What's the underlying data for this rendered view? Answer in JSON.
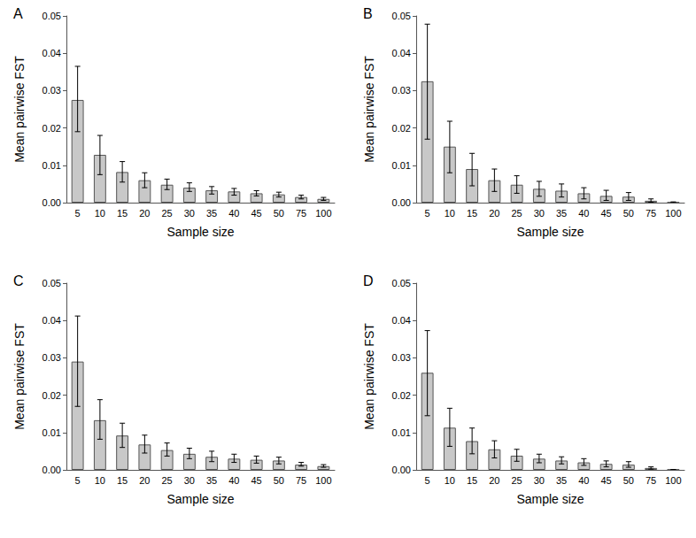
{
  "chart_data": [
    {
      "type": "bar",
      "title": "A",
      "x_label": "Sample size",
      "y_label": "Mean pairwise FST",
      "categories": [
        "5",
        "10",
        "15",
        "20",
        "25",
        "30",
        "35",
        "40",
        "45",
        "50",
        "75",
        "100"
      ],
      "values": [
        0.0275,
        0.0128,
        0.0082,
        0.006,
        0.0048,
        0.004,
        0.0033,
        0.003,
        0.0025,
        0.0022,
        0.0015,
        0.001
      ],
      "error_low": [
        0.019,
        0.0075,
        0.0055,
        0.004,
        0.0035,
        0.003,
        0.0023,
        0.002,
        0.0018,
        0.0015,
        0.001,
        0.0006
      ],
      "error_high": [
        0.0365,
        0.018,
        0.011,
        0.008,
        0.0063,
        0.0053,
        0.0043,
        0.0038,
        0.0032,
        0.0028,
        0.002,
        0.0014
      ],
      "color": "#c8c8c8",
      "grid": false,
      "ylim": [
        0,
        0.05
      ],
      "yticks": [
        {
          "value": 0,
          "label": "0.00"
        },
        {
          "value": 0.01,
          "label": "0.01"
        },
        {
          "value": 0.02,
          "label": "0.02"
        },
        {
          "value": 0.03,
          "label": "0.03"
        },
        {
          "value": 0.04,
          "label": "0.04"
        },
        {
          "value": 0.05,
          "label": "0.05"
        }
      ]
    },
    {
      "type": "bar",
      "title": "B",
      "x_label": "Sample size",
      "y_label": "Mean pairwise FST",
      "categories": [
        "5",
        "10",
        "15",
        "20",
        "25",
        "30",
        "35",
        "40",
        "45",
        "50",
        "75",
        "100"
      ],
      "values": [
        0.0325,
        0.015,
        0.009,
        0.006,
        0.0048,
        0.0037,
        0.0032,
        0.0025,
        0.0018,
        0.0016,
        0.0005,
        0.0001
      ],
      "error_low": [
        0.017,
        0.008,
        0.0045,
        0.003,
        0.0025,
        0.0017,
        0.0015,
        0.001,
        0.0006,
        0.0006,
        0.0001,
        0
      ],
      "error_high": [
        0.0478,
        0.0218,
        0.0132,
        0.009,
        0.0072,
        0.0057,
        0.005,
        0.004,
        0.0033,
        0.0027,
        0.001,
        0.0002
      ],
      "color": "#c8c8c8",
      "grid": false,
      "ylim": [
        0,
        0.05
      ],
      "yticks": [
        {
          "value": 0,
          "label": "0.00"
        },
        {
          "value": 0.01,
          "label": "0.01"
        },
        {
          "value": 0.02,
          "label": "0.02"
        },
        {
          "value": 0.03,
          "label": "0.03"
        },
        {
          "value": 0.04,
          "label": "0.04"
        },
        {
          "value": 0.05,
          "label": "0.05"
        }
      ]
    },
    {
      "type": "bar",
      "title": "C",
      "x_label": "Sample size",
      "y_label": "Mean pairwise FST",
      "categories": [
        "5",
        "10",
        "15",
        "20",
        "25",
        "30",
        "35",
        "40",
        "45",
        "50",
        "75",
        "100"
      ],
      "values": [
        0.029,
        0.0133,
        0.0092,
        0.0068,
        0.0053,
        0.0043,
        0.0035,
        0.003,
        0.0027,
        0.0025,
        0.0014,
        0.001
      ],
      "error_low": [
        0.017,
        0.0082,
        0.006,
        0.0045,
        0.0037,
        0.003,
        0.0022,
        0.002,
        0.0018,
        0.0016,
        0.001,
        0.0007
      ],
      "error_high": [
        0.0412,
        0.0188,
        0.0125,
        0.0093,
        0.0072,
        0.0058,
        0.005,
        0.0042,
        0.0037,
        0.0034,
        0.002,
        0.0014
      ],
      "color": "#c8c8c8",
      "grid": false,
      "ylim": [
        0,
        0.05
      ],
      "yticks": [
        {
          "value": 0,
          "label": "0.00"
        },
        {
          "value": 0.01,
          "label": "0.01"
        },
        {
          "value": 0.02,
          "label": "0.02"
        },
        {
          "value": 0.03,
          "label": "0.03"
        },
        {
          "value": 0.04,
          "label": "0.04"
        },
        {
          "value": 0.05,
          "label": "0.05"
        }
      ]
    },
    {
      "type": "bar",
      "title": "D",
      "x_label": "Sample size",
      "y_label": "Mean pairwise FST",
      "categories": [
        "5",
        "10",
        "15",
        "20",
        "25",
        "30",
        "35",
        "40",
        "45",
        "50",
        "75",
        "100"
      ],
      "values": [
        0.026,
        0.0113,
        0.0077,
        0.0055,
        0.0038,
        0.003,
        0.0025,
        0.002,
        0.0016,
        0.0014,
        0.0005,
        0.0001
      ],
      "error_low": [
        0.0145,
        0.0063,
        0.0043,
        0.0032,
        0.0023,
        0.0019,
        0.0016,
        0.0012,
        0.0008,
        0.0007,
        0.0002,
        0
      ],
      "error_high": [
        0.0373,
        0.0165,
        0.0112,
        0.0078,
        0.0055,
        0.0042,
        0.0035,
        0.003,
        0.0024,
        0.0022,
        0.0008,
        0.0001
      ],
      "color": "#c8c8c8",
      "grid": false,
      "ylim": [
        0,
        0.05
      ],
      "yticks": [
        {
          "value": 0,
          "label": "0.00"
        },
        {
          "value": 0.01,
          "label": "0.01"
        },
        {
          "value": 0.02,
          "label": "0.02"
        },
        {
          "value": 0.03,
          "label": "0.03"
        },
        {
          "value": 0.04,
          "label": "0.04"
        },
        {
          "value": 0.05,
          "label": "0.05"
        }
      ]
    }
  ]
}
